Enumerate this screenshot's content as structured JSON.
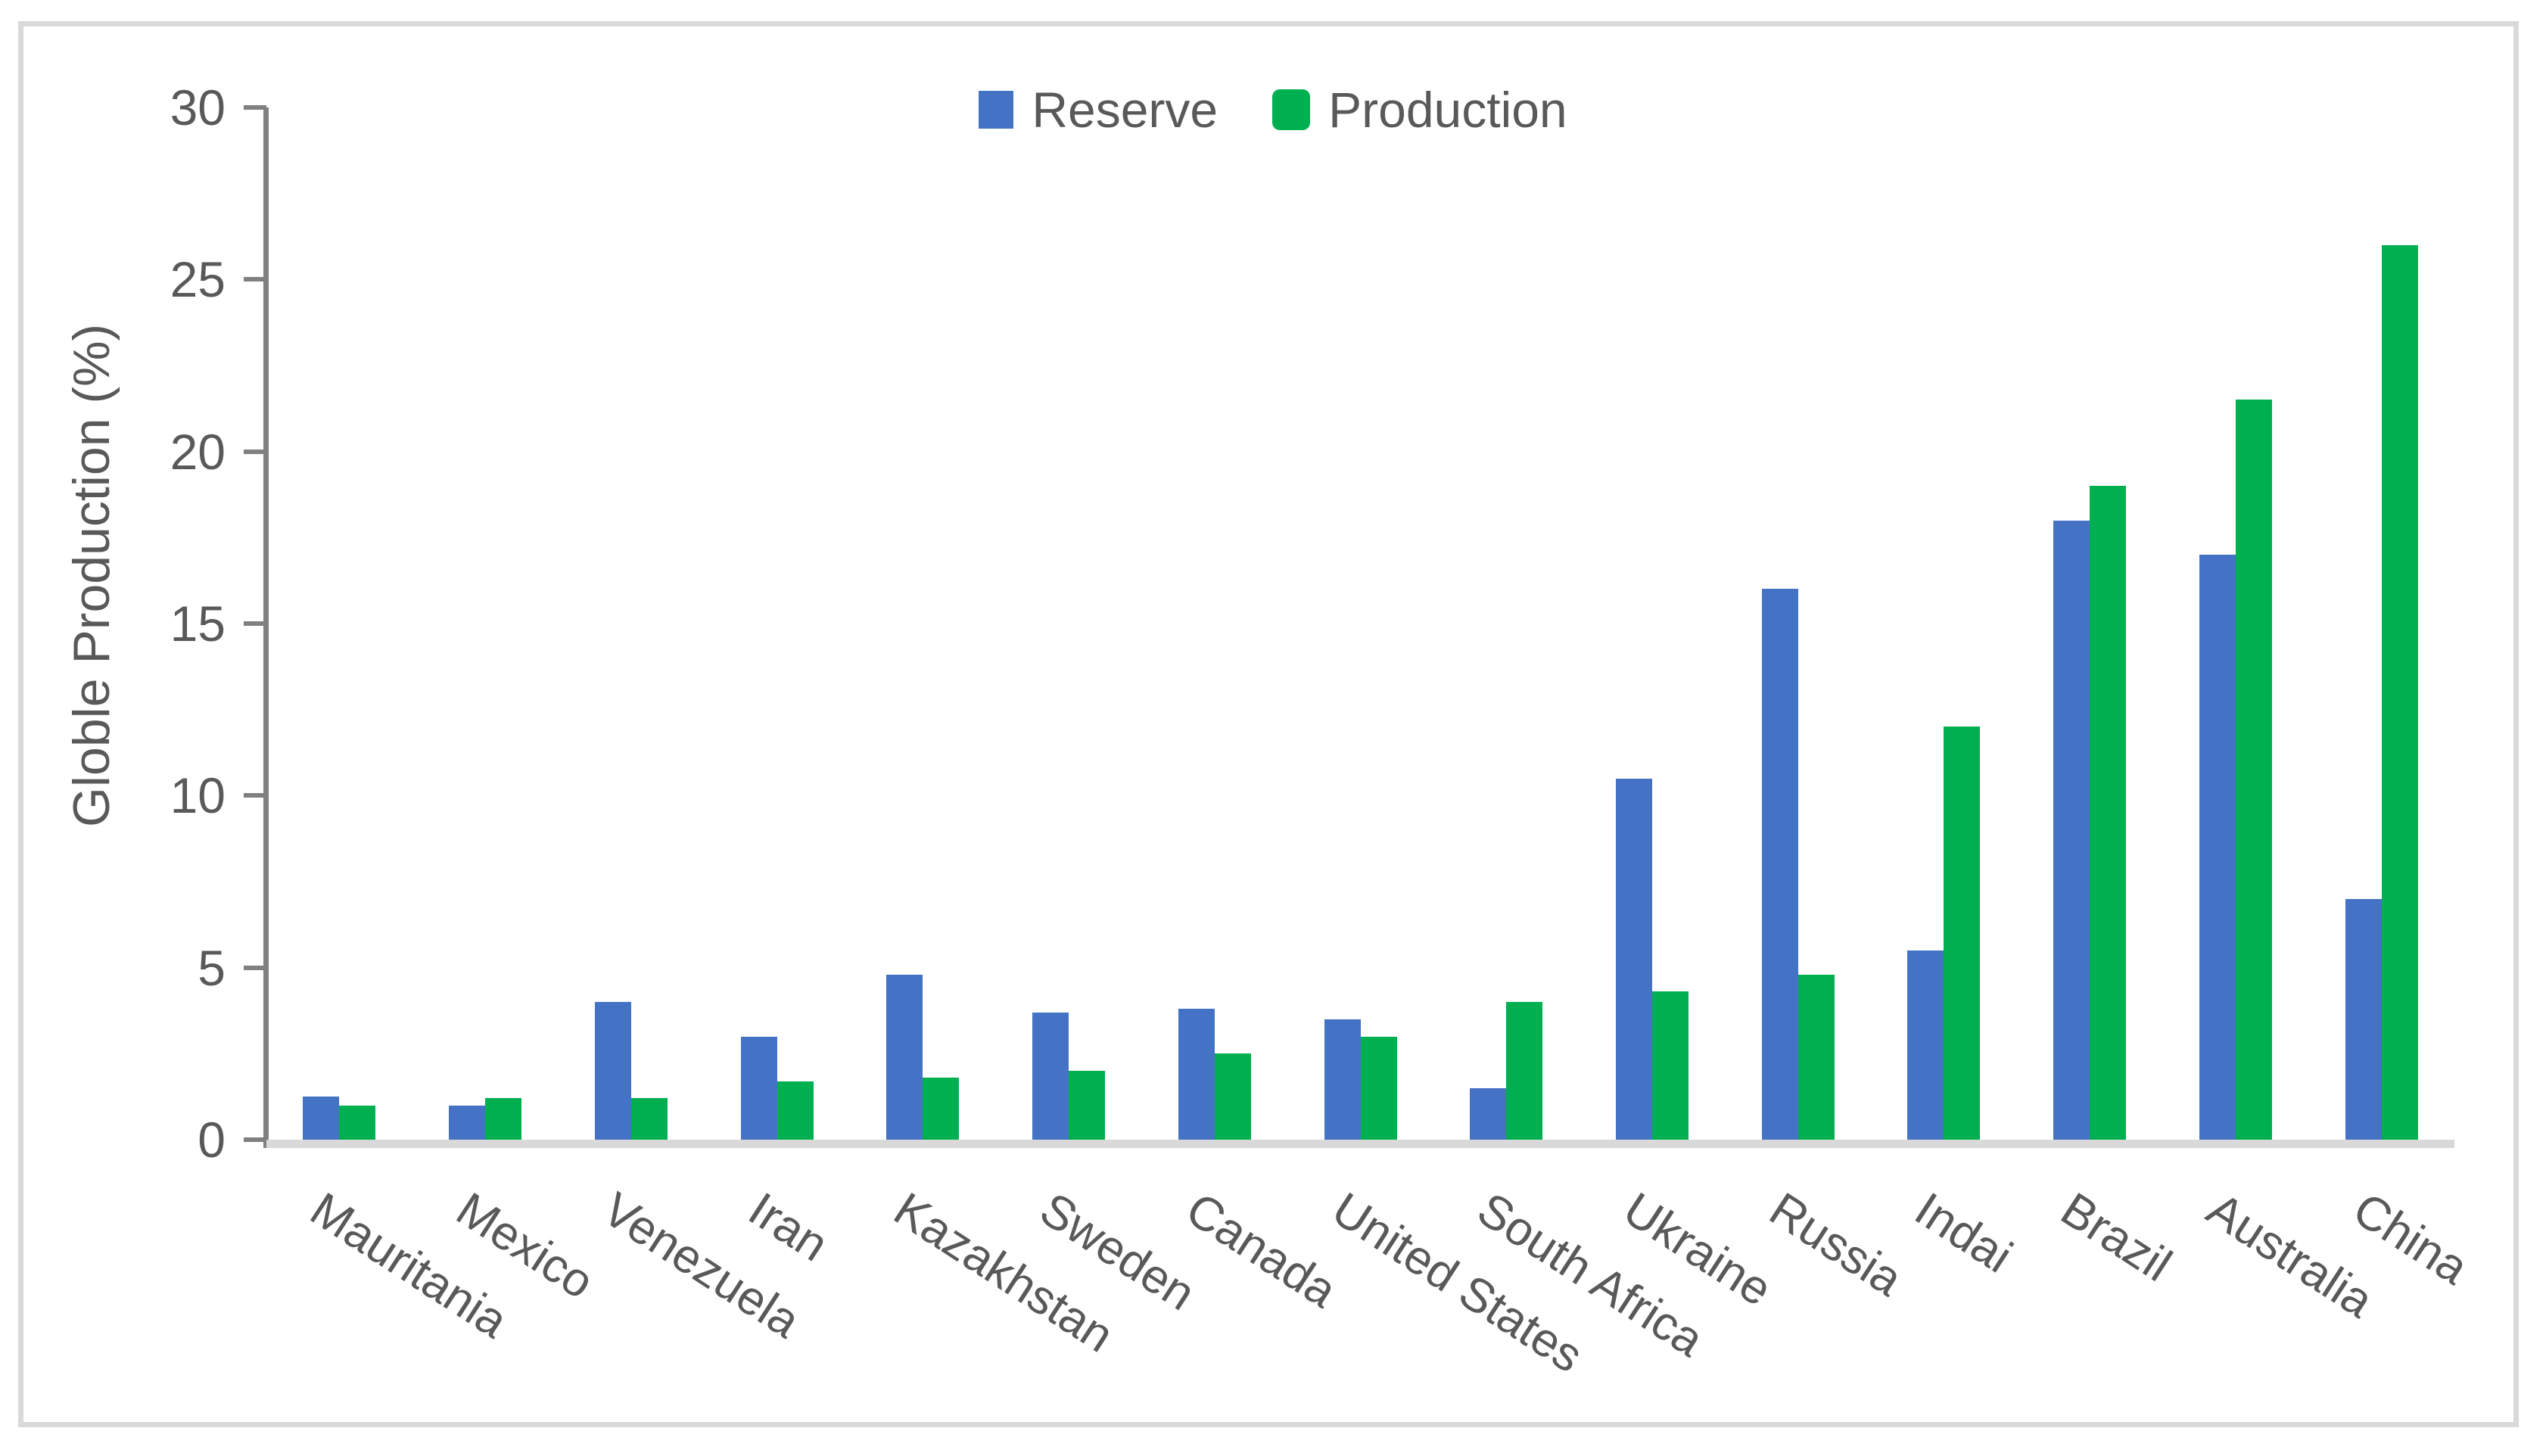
{
  "legend": {
    "items": [
      {
        "label": "Reserve",
        "color": "#4472C4",
        "swatch": "square"
      },
      {
        "label": "Production",
        "color": "#00B050",
        "swatch": "rounded-square"
      }
    ]
  },
  "y_axis": {
    "title": "Globle Production (%)",
    "tick_labels": [
      "0",
      "5",
      "10",
      "15",
      "20",
      "25",
      "30"
    ]
  },
  "colors": {
    "reserve_bar": "#4472C4",
    "production_bar": "#00B050",
    "axis_text": "#595959",
    "axis_line": "#808080",
    "baseline": "#D9D9D9",
    "frame_border": "#D9D9D9",
    "background": "#FFFFFF"
  },
  "chart_data": {
    "type": "bar",
    "title": "",
    "xlabel": "",
    "ylabel": "Globle Production (%)",
    "ylim": [
      0,
      30
    ],
    "yticks": [
      0,
      5,
      10,
      15,
      20,
      25,
      30
    ],
    "grid": false,
    "legend_position": "top-center",
    "categories": [
      "Mauritania",
      "Mexico",
      "Venezuela",
      "Iran",
      "Kazakhstan",
      "Sweden",
      "Canada",
      "United States",
      "South Africa",
      "Ukraine",
      "Russia",
      "Indai",
      "Brazil",
      "Australia",
      "China"
    ],
    "series": [
      {
        "name": "Reserve",
        "color": "#4472C4",
        "values": [
          1.25,
          1.0,
          4.0,
          3.0,
          4.8,
          3.7,
          3.8,
          3.5,
          1.5,
          10.5,
          16.0,
          5.5,
          18.0,
          17.0,
          7.0
        ]
      },
      {
        "name": "Production",
        "color": "#00B050",
        "values": [
          1.0,
          1.2,
          1.2,
          1.7,
          1.8,
          2.0,
          2.5,
          3.0,
          4.0,
          4.3,
          4.8,
          12.0,
          19.0,
          21.5,
          26.0
        ]
      }
    ]
  }
}
